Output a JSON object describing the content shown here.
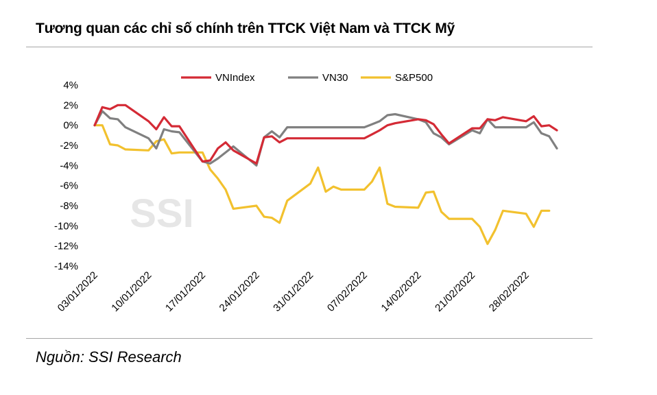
{
  "title": "Tương quan các chỉ số chính trên TTCK Việt Nam và TTCK Mỹ",
  "source": "Nguồn: SSI Research",
  "watermark": "SSI",
  "chart_data": {
    "type": "line",
    "y_unit": "%",
    "ylim": [
      -14,
      4
    ],
    "yticks": [
      4,
      2,
      0,
      -2,
      -4,
      -6,
      -8,
      -10,
      -12,
      -14
    ],
    "ytick_labels": [
      "4%",
      "2%",
      "0%",
      "-2%",
      "-4%",
      "-6%",
      "-8%",
      "-10%",
      "-12%",
      "-14%"
    ],
    "xlim": [
      "2022-01-03",
      "2022-03-04"
    ],
    "xtick_labels": [
      "03/01/2022",
      "10/01/2022",
      "17/01/2022",
      "24/01/2022",
      "31/01/2022",
      "07/02/2022",
      "14/02/2022",
      "21/02/2022",
      "28/02/2022"
    ],
    "xtick_dates": [
      "2022-01-03",
      "2022-01-10",
      "2022-01-17",
      "2022-01-24",
      "2022-01-31",
      "2022-02-07",
      "2022-02-14",
      "2022-02-21",
      "2022-02-28"
    ],
    "grid": false,
    "legend_position": "top",
    "series": [
      {
        "name": "VNIndex",
        "color": "#d42a35",
        "points": [
          [
            "2022-01-03",
            0
          ],
          [
            "2022-01-04",
            1.8
          ],
          [
            "2022-01-05",
            1.6
          ],
          [
            "2022-01-06",
            2.0
          ],
          [
            "2022-01-07",
            2.0
          ],
          [
            "2022-01-10",
            0.4
          ],
          [
            "2022-01-11",
            -0.4
          ],
          [
            "2022-01-12",
            0.8
          ],
          [
            "2022-01-13",
            -0.1
          ],
          [
            "2022-01-14",
            -0.1
          ],
          [
            "2022-01-17",
            -3.6
          ],
          [
            "2022-01-18",
            -3.5
          ],
          [
            "2022-01-19",
            -2.3
          ],
          [
            "2022-01-20",
            -1.7
          ],
          [
            "2022-01-21",
            -2.5
          ],
          [
            "2022-01-24",
            -3.8
          ],
          [
            "2022-01-25",
            -1.2
          ],
          [
            "2022-01-26",
            -1.1
          ],
          [
            "2022-01-27",
            -1.7
          ],
          [
            "2022-01-28",
            -1.3
          ],
          [
            "2022-02-07",
            -1.3
          ],
          [
            "2022-02-08",
            -0.9
          ],
          [
            "2022-02-09",
            -0.5
          ],
          [
            "2022-02-10",
            0.0
          ],
          [
            "2022-02-11",
            0.2
          ],
          [
            "2022-02-14",
            0.6
          ],
          [
            "2022-02-15",
            0.5
          ],
          [
            "2022-02-16",
            0.1
          ],
          [
            "2022-02-17",
            -0.9
          ],
          [
            "2022-02-18",
            -1.8
          ],
          [
            "2022-02-21",
            -0.3
          ],
          [
            "2022-02-22",
            -0.3
          ],
          [
            "2022-02-23",
            0.6
          ],
          [
            "2022-02-24",
            0.5
          ],
          [
            "2022-02-25",
            0.8
          ],
          [
            "2022-02-28",
            0.4
          ],
          [
            "2022-03-01",
            0.9
          ],
          [
            "2022-03-02",
            -0.1
          ],
          [
            "2022-03-03",
            0.0
          ],
          [
            "2022-03-04",
            -0.5
          ]
        ]
      },
      {
        "name": "VN30",
        "color": "#808080",
        "points": [
          [
            "2022-01-03",
            0
          ],
          [
            "2022-01-04",
            1.4
          ],
          [
            "2022-01-05",
            0.7
          ],
          [
            "2022-01-06",
            0.6
          ],
          [
            "2022-01-07",
            -0.2
          ],
          [
            "2022-01-10",
            -1.3
          ],
          [
            "2022-01-11",
            -2.3
          ],
          [
            "2022-01-12",
            -0.4
          ],
          [
            "2022-01-13",
            -0.6
          ],
          [
            "2022-01-14",
            -0.7
          ],
          [
            "2022-01-17",
            -3.6
          ],
          [
            "2022-01-18",
            -3.8
          ],
          [
            "2022-01-19",
            -3.3
          ],
          [
            "2022-01-20",
            -2.7
          ],
          [
            "2022-01-21",
            -2.1
          ],
          [
            "2022-01-24",
            -4.0
          ],
          [
            "2022-01-25",
            -1.2
          ],
          [
            "2022-01-26",
            -0.6
          ],
          [
            "2022-01-27",
            -1.2
          ],
          [
            "2022-01-28",
            -0.2
          ],
          [
            "2022-02-07",
            -0.2
          ],
          [
            "2022-02-08",
            0.1
          ],
          [
            "2022-02-09",
            0.4
          ],
          [
            "2022-02-10",
            1.0
          ],
          [
            "2022-02-11",
            1.1
          ],
          [
            "2022-02-14",
            0.6
          ],
          [
            "2022-02-15",
            0.3
          ],
          [
            "2022-02-16",
            -0.8
          ],
          [
            "2022-02-17",
            -1.2
          ],
          [
            "2022-02-18",
            -1.9
          ],
          [
            "2022-02-21",
            -0.5
          ],
          [
            "2022-02-22",
            -0.8
          ],
          [
            "2022-02-23",
            0.6
          ],
          [
            "2022-02-24",
            -0.2
          ],
          [
            "2022-02-25",
            -0.2
          ],
          [
            "2022-02-28",
            -0.2
          ],
          [
            "2022-03-01",
            0.3
          ],
          [
            "2022-03-02",
            -0.8
          ],
          [
            "2022-03-03",
            -1.1
          ],
          [
            "2022-03-04",
            -2.3
          ]
        ]
      },
      {
        "name": "S&P500",
        "color": "#f2c12e",
        "points": [
          [
            "2022-01-03",
            0
          ],
          [
            "2022-01-04",
            0.0
          ],
          [
            "2022-01-05",
            -1.9
          ],
          [
            "2022-01-06",
            -2.0
          ],
          [
            "2022-01-07",
            -2.4
          ],
          [
            "2022-01-10",
            -2.5
          ],
          [
            "2022-01-11",
            -1.6
          ],
          [
            "2022-01-12",
            -1.4
          ],
          [
            "2022-01-13",
            -2.8
          ],
          [
            "2022-01-14",
            -2.7
          ],
          [
            "2022-01-17",
            -2.7
          ],
          [
            "2022-01-18",
            -4.4
          ],
          [
            "2022-01-19",
            -5.3
          ],
          [
            "2022-01-20",
            -6.4
          ],
          [
            "2022-01-21",
            -8.3
          ],
          [
            "2022-01-24",
            -8.0
          ],
          [
            "2022-01-25",
            -9.1
          ],
          [
            "2022-01-26",
            -9.2
          ],
          [
            "2022-01-27",
            -9.7
          ],
          [
            "2022-01-28",
            -7.5
          ],
          [
            "2022-01-31",
            -5.8
          ],
          [
            "2022-02-01",
            -4.2
          ],
          [
            "2022-02-02",
            -6.6
          ],
          [
            "2022-02-03",
            -6.1
          ],
          [
            "2022-02-04",
            -6.4
          ],
          [
            "2022-02-07",
            -6.4
          ],
          [
            "2022-02-08",
            -5.6
          ],
          [
            "2022-02-09",
            -4.2
          ],
          [
            "2022-02-10",
            -7.8
          ],
          [
            "2022-02-11",
            -8.1
          ],
          [
            "2022-02-14",
            -8.2
          ],
          [
            "2022-02-15",
            -6.7
          ],
          [
            "2022-02-16",
            -6.6
          ],
          [
            "2022-02-17",
            -8.6
          ],
          [
            "2022-02-18",
            -9.3
          ],
          [
            "2022-02-21",
            -9.3
          ],
          [
            "2022-02-22",
            -10.1
          ],
          [
            "2022-02-23",
            -11.8
          ],
          [
            "2022-02-24",
            -10.4
          ],
          [
            "2022-02-25",
            -8.5
          ],
          [
            "2022-02-28",
            -8.8
          ],
          [
            "2022-03-01",
            -10.1
          ],
          [
            "2022-03-02",
            -8.5
          ],
          [
            "2022-03-03",
            -8.5
          ]
        ]
      }
    ]
  }
}
